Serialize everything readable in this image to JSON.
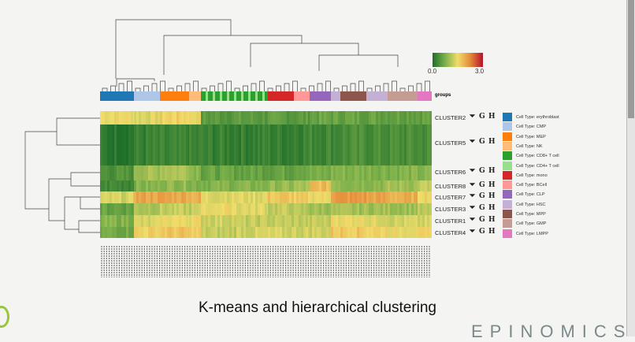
{
  "colorbar": {
    "min": "0.0",
    "max": "3.0",
    "colors": [
      "#1f6f2a",
      "#7bb04a",
      "#f0dd6a",
      "#e48a3a",
      "#b4122a"
    ]
  },
  "groups_label": "groups",
  "legend": [
    {
      "label": "Cell Type: erythroblast",
      "color": "#1f77b4"
    },
    {
      "label": "Cell Type: CMP",
      "color": "#aec7e8"
    },
    {
      "label": "Cell Type: MEP",
      "color": "#ff7f0e"
    },
    {
      "label": "Cell Type: NK",
      "color": "#ffbb78"
    },
    {
      "label": "Cell Type: CD8+ T cell",
      "color": "#2ca02c"
    },
    {
      "label": "Cell Type: CD4+ T cell",
      "color": "#98df8a"
    },
    {
      "label": "Cell Type: mono",
      "color": "#d62728"
    },
    {
      "label": "Cell Type: BCell",
      "color": "#ff9896"
    },
    {
      "label": "Cell Type: CLP",
      "color": "#9467bd"
    },
    {
      "label": "Cell Type: HSC",
      "color": "#c5b0d5"
    },
    {
      "label": "Cell Type: MPP",
      "color": "#8c564b"
    },
    {
      "label": "Cell Type: GMP",
      "color": "#c49c94"
    },
    {
      "label": "Cell Type: LMPP",
      "color": "#e377c2"
    }
  ],
  "action_icons": {
    "download": "download-icon",
    "g": "G",
    "h": "H"
  },
  "chart_data": {
    "type": "heatmap",
    "value_range": [
      0,
      3
    ],
    "column_groups": [
      "erythroblast",
      "CMP",
      "MEP",
      "NK",
      "CD8+ T cell",
      "CD4+ T cell",
      "mono",
      "BCell",
      "CLP",
      "HSC",
      "MPP",
      "HSC",
      "GMP",
      "LMPP"
    ],
    "rows": [
      {
        "label": "CLUSTER2",
        "values": [
          1.5,
          1.4,
          1.6,
          1.5,
          0.5,
          0.5,
          0.5,
          0.5,
          0.6,
          0.6,
          0.6,
          0.6,
          0.6,
          0.6
        ]
      },
      {
        "label": "CLUSTER5",
        "values": [
          0.1,
          0.2,
          0.2,
          0.2,
          0.2,
          0.2,
          0.2,
          0.25,
          0.3,
          0.3,
          0.35,
          0.35,
          0.35,
          0.35
        ]
      },
      {
        "label": "CLUSTER6",
        "values": [
          0.4,
          1.0,
          1.1,
          0.9,
          0.6,
          0.6,
          0.6,
          0.7,
          0.7,
          0.8,
          0.8,
          0.8,
          0.8,
          0.8
        ]
      },
      {
        "label": "CLUSTER8",
        "values": [
          0.3,
          0.8,
          0.9,
          0.8,
          0.8,
          0.8,
          0.9,
          1.0,
          1.8,
          1.0,
          0.9,
          0.9,
          1.0,
          1.2
        ]
      },
      {
        "label": "CLUSTER7",
        "values": [
          1.3,
          2.0,
          2.0,
          1.9,
          1.4,
          1.4,
          1.7,
          1.6,
          1.5,
          2.1,
          2.1,
          2.0,
          1.9,
          1.6
        ]
      },
      {
        "label": "CLUSTER3",
        "values": [
          0.6,
          1.1,
          1.2,
          1.2,
          1.5,
          1.4,
          1.2,
          1.1,
          1.0,
          1.0,
          1.0,
          1.0,
          1.0,
          1.1
        ]
      },
      {
        "label": "CLUSTER1",
        "values": [
          0.8,
          1.3,
          1.5,
          1.5,
          1.3,
          1.2,
          1.2,
          1.2,
          1.2,
          1.5,
          1.5,
          1.4,
          1.3,
          1.3
        ]
      },
      {
        "label": "CLUSTER4",
        "values": [
          0.7,
          1.6,
          1.7,
          1.6,
          1.2,
          1.3,
          1.3,
          1.3,
          1.3,
          1.7,
          1.7,
          1.6,
          1.5,
          1.5
        ]
      }
    ]
  },
  "title": "K-means and hierarchical clustering",
  "brand": "EPINOMICS"
}
